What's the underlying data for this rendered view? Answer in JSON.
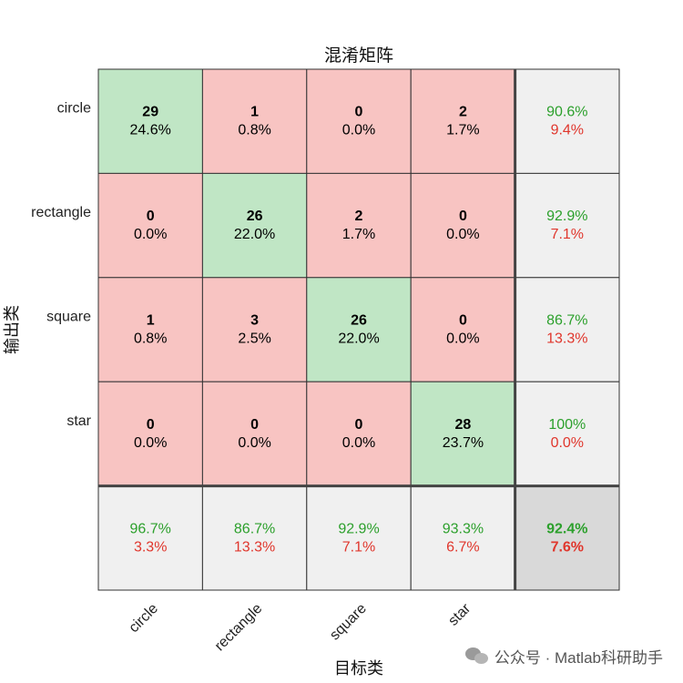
{
  "chart_data": {
    "type": "heatmap",
    "title": "混淆矩阵",
    "xlabel": "目标类",
    "ylabel": "输出类",
    "classes": [
      "circle",
      "rectangle",
      "square",
      "star"
    ],
    "matrix": [
      [
        29,
        1,
        0,
        2
      ],
      [
        0,
        26,
        2,
        0
      ],
      [
        1,
        3,
        26,
        0
      ],
      [
        0,
        0,
        0,
        28
      ]
    ],
    "cell_percent": [
      [
        "24.6%",
        "0.8%",
        "0.0%",
        "1.7%"
      ],
      [
        "0.0%",
        "22.0%",
        "1.7%",
        "0.0%"
      ],
      [
        "0.8%",
        "2.5%",
        "22.0%",
        "0.0%"
      ],
      [
        "0.0%",
        "0.0%",
        "0.0%",
        "23.7%"
      ]
    ],
    "row_summary": [
      {
        "correct": "90.6%",
        "wrong": "9.4%"
      },
      {
        "correct": "92.9%",
        "wrong": "7.1%"
      },
      {
        "correct": "86.7%",
        "wrong": "13.3%"
      },
      {
        "correct": "100%",
        "wrong": "0.0%"
      }
    ],
    "col_summary": [
      {
        "correct": "96.7%",
        "wrong": "3.3%"
      },
      {
        "correct": "86.7%",
        "wrong": "13.3%"
      },
      {
        "correct": "92.9%",
        "wrong": "7.1%"
      },
      {
        "correct": "93.3%",
        "wrong": "6.7%"
      }
    ],
    "overall": {
      "correct": "92.4%",
      "wrong": "7.6%"
    },
    "colors": {
      "correct_cell": "#c0e6c5",
      "wrong_cell": "#f8c4c2",
      "summary_cell": "#f0f0f0",
      "overall_cell": "#d9d9d9",
      "correct_text": "#2ca02c",
      "wrong_text": "#e0362c",
      "grid": "#333333"
    }
  },
  "watermark": {
    "text": "公众号 · Matlab科研助手",
    "icon": "wechat-icon"
  }
}
